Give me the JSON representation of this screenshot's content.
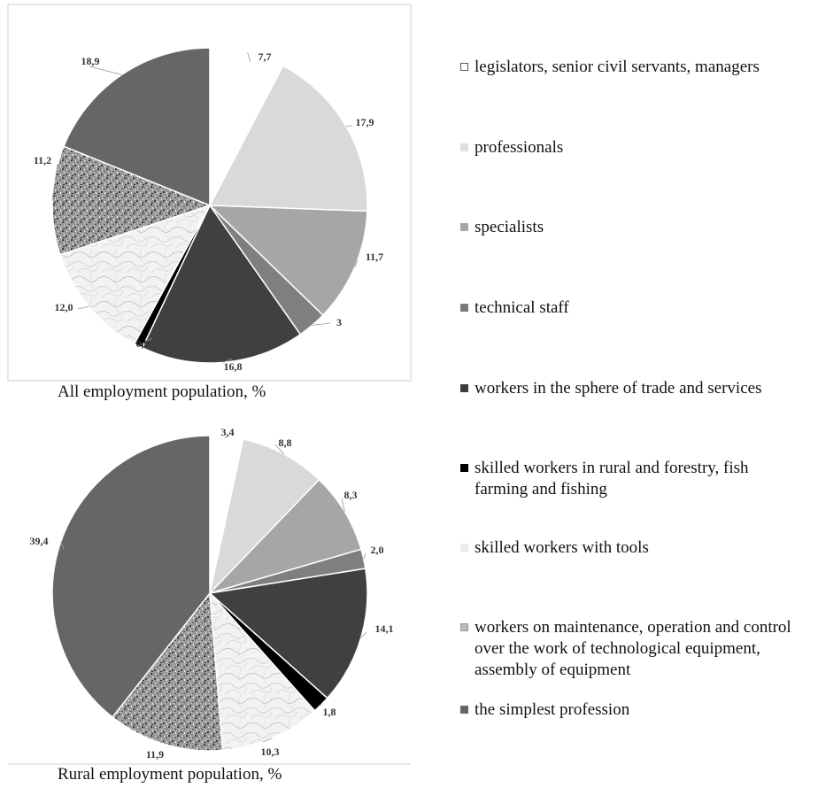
{
  "chart_data": [
    {
      "type": "pie",
      "caption": "All employment population, %",
      "categories": [
        "legislators, senior civil servants, managers",
        "professionals",
        "specialists",
        "technical staff",
        "workers in the sphere of trade and services",
        "skilled workers in rural and forestry, fish farming and fishing",
        "skilled workers with tools",
        "workers on maintenance, operation and control over the work of technological equipment, assembly of equipment",
        "the simplest profession"
      ],
      "values": [
        7.7,
        17.9,
        11.7,
        3,
        16.8,
        0.9,
        12.0,
        11.2,
        18.9
      ],
      "value_labels": [
        "7,7",
        "17,9",
        "11,7",
        "3",
        "16,8",
        "0,9",
        "12,0",
        "11,2",
        "18,9"
      ]
    },
    {
      "type": "pie",
      "caption": "Rural employment population, %",
      "categories": [
        "legislators, senior civil servants, managers",
        "professionals",
        "specialists",
        "technical staff",
        "workers in the sphere of trade and services",
        "skilled workers in rural and forestry, fish farming and fishing",
        "skilled workers with tools",
        "workers on maintenance, operation and control over the work of technological equipment, assembly of equipment",
        "the simplest profession"
      ],
      "values": [
        3.4,
        8.8,
        8.3,
        2.0,
        14.1,
        1.8,
        10.3,
        11.9,
        39.4
      ],
      "value_labels": [
        "3,4",
        "8,8",
        "8,3",
        "2,0",
        "14,1",
        "1,8",
        "10,3",
        "11,9",
        "39,4"
      ]
    }
  ],
  "legend": {
    "items": [
      {
        "label": "legislators, senior civil servants, managers",
        "fill": "#ffffff",
        "stroke": "#555555"
      },
      {
        "label": "professionals",
        "fill": "#e0e0e0",
        "stroke": "#e0e0e0"
      },
      {
        "label": "specialists",
        "fill": "#a6a6a6",
        "stroke": "#a6a6a6"
      },
      {
        "label": "technical staff",
        "fill": "#7a7a7a",
        "stroke": "#7a7a7a"
      },
      {
        "label": "workers in the sphere of trade and services",
        "fill": "#3c3c3c",
        "stroke": "#3c3c3c"
      },
      {
        "label": "skilled workers in rural and forestry, fish farming and fishing",
        "fill": "#000000",
        "stroke": "#000000"
      },
      {
        "label": "skilled workers with tools",
        "fill": "#ececec",
        "stroke": "#ececec"
      },
      {
        "label": "workers on maintenance, operation and control over the work of technological equipment, assembly of equipment",
        "fill": "#bbbbbb",
        "stroke": "#999999"
      },
      {
        "label": "the simplest profession",
        "fill": "#666666",
        "stroke": "#666666"
      }
    ]
  },
  "colors": {
    "slice_fills": [
      "#ffffff",
      "#d9d9d9",
      "#a6a6a6",
      "#7f7f7f",
      "#404040",
      "#000000",
      "url(#pat-marble)",
      "url(#pat-granite)",
      "#666666"
    ],
    "border": "#cfcfcf"
  }
}
